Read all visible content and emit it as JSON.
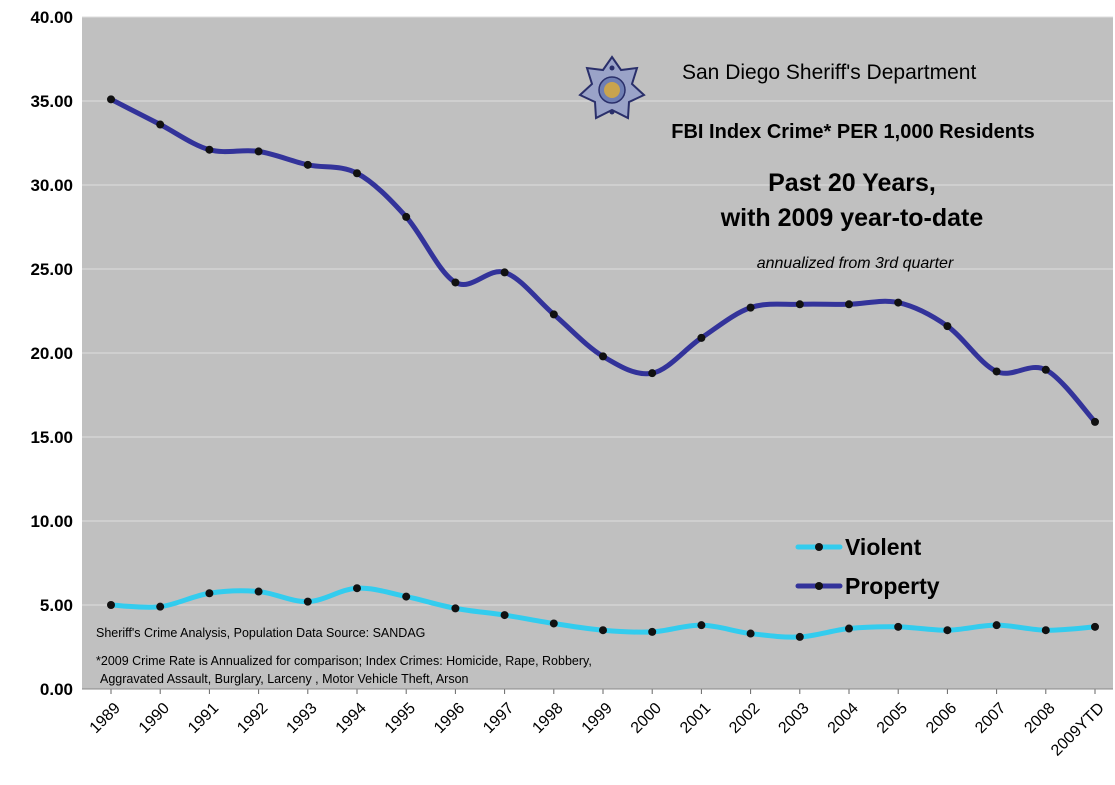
{
  "chart_data": {
    "type": "line",
    "title_org": "San Diego  Sheriff's Department",
    "title": "FBI Index Crime* PER 1,000 Residents",
    "subtitle_line1": "Past 20 Years,",
    "subtitle_line2": "with 2009 year-to-date",
    "annotation": "annualized from 3rd quarter",
    "categories": [
      "1989",
      "1990",
      "1991",
      "1992",
      "1993",
      "1994",
      "1995",
      "1996",
      "1997",
      "1998",
      "1999",
      "2000",
      "2001",
      "2002",
      "2003",
      "2004",
      "2005",
      "2006",
      "2007",
      "2008",
      "2009YTD"
    ],
    "y_ticks": [
      "0.00",
      "5.00",
      "10.00",
      "15.00",
      "20.00",
      "25.00",
      "30.00",
      "35.00",
      "40.00"
    ],
    "ylim": [
      0,
      40
    ],
    "grid": true,
    "legend_position": "right-middle",
    "series": [
      {
        "name": "Violent",
        "color": "#33ccee",
        "values": [
          5.0,
          4.9,
          5.7,
          5.8,
          5.2,
          6.0,
          5.5,
          4.8,
          4.4,
          3.9,
          3.5,
          3.4,
          3.8,
          3.3,
          3.1,
          3.6,
          3.7,
          3.5,
          3.8,
          3.5,
          3.7
        ]
      },
      {
        "name": "Property",
        "color": "#33339a",
        "values": [
          35.1,
          33.6,
          32.1,
          32.0,
          31.2,
          30.7,
          28.1,
          24.2,
          24.8,
          22.3,
          19.8,
          18.8,
          20.9,
          22.7,
          22.9,
          22.9,
          23.0,
          21.6,
          18.9,
          19.0,
          15.9
        ]
      }
    ],
    "source_note": "Sheriff's Crime Analysis, Population Data Source: SANDAG",
    "footnote_line1": "*2009 Crime Rate is Annualized for comparison; Index Crimes: Homicide, Rape, Robbery,",
    "footnote_line2": "Aggravated Assault, Burglary, Larceny , Motor Vehicle Theft, Arson",
    "colors": {
      "plot_bg": "#c0c0c0",
      "grid": "#dedede",
      "marker": "#111111"
    },
    "logo": "sheriff-star-badge-icon"
  }
}
